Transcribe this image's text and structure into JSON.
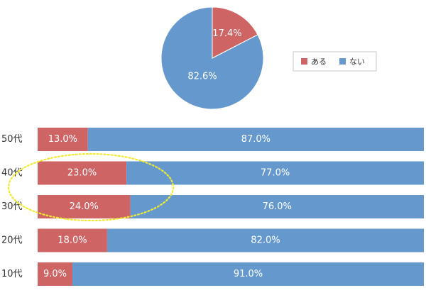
{
  "chart_data": [
    {
      "type": "pie",
      "categories": [
        "ある",
        "ない"
      ],
      "values": [
        17.4,
        82.6
      ],
      "data_labels": [
        "17.4%",
        "82.6%"
      ],
      "colors": [
        "#cf6465",
        "#6599cd"
      ],
      "legend": {
        "placement": "right",
        "entries": [
          "ある",
          "ない"
        ]
      }
    },
    {
      "type": "bar",
      "orientation": "horizontal",
      "stacked": true,
      "percent_stacked": true,
      "categories": [
        "50代",
        "40代",
        "30代",
        "20代",
        "10代"
      ],
      "series": [
        {
          "name": "ある",
          "values": [
            13.0,
            23.0,
            24.0,
            18.0,
            9.0
          ],
          "labels": [
            "13.0%",
            "23.0%",
            "24.0%",
            "18.0%",
            "9.0%"
          ],
          "color": "#cf6465"
        },
        {
          "name": "ない",
          "values": [
            87.0,
            77.0,
            76.0,
            82.0,
            91.0
          ],
          "labels": [
            "87.0%",
            "77.0%",
            "76.0%",
            "82.0%",
            "91.0%"
          ],
          "color": "#6599cd"
        }
      ],
      "xlim": [
        0,
        100
      ],
      "grid": false,
      "annotation": {
        "shape": "dotted-ellipse",
        "color": "#f0ea33",
        "highlights": [
          "40代",
          "30代"
        ]
      }
    }
  ],
  "colors": {
    "aru": "#cf6465",
    "nai": "#6599cd",
    "highlight": "#f0ea33",
    "label_text": "#ffffff",
    "category_text": "#333333"
  }
}
